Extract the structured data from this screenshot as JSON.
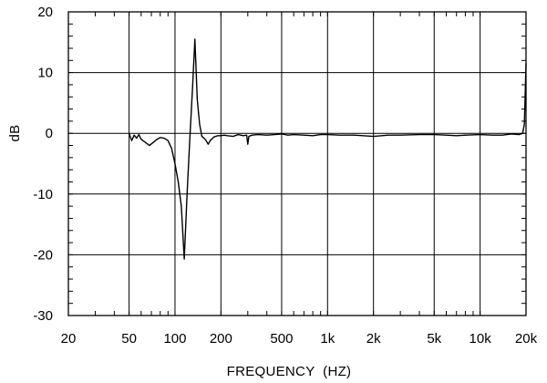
{
  "chart_data": {
    "type": "line",
    "title": "",
    "xlabel": "FREQUENCY  (HZ)",
    "ylabel": "dB",
    "x_scale": "log",
    "xlim": [
      20,
      20000
    ],
    "ylim": [
      -30,
      20
    ],
    "grid": true,
    "legend": "none",
    "x_ticks": [
      {
        "value": 20,
        "label": "20"
      },
      {
        "value": 50,
        "label": "50"
      },
      {
        "value": 100,
        "label": "100"
      },
      {
        "value": 200,
        "label": "200"
      },
      {
        "value": 500,
        "label": "500"
      },
      {
        "value": 1000,
        "label": "1k"
      },
      {
        "value": 2000,
        "label": "2k"
      },
      {
        "value": 5000,
        "label": "5k"
      },
      {
        "value": 10000,
        "label": "10k"
      },
      {
        "value": 20000,
        "label": "20k"
      }
    ],
    "y_ticks": [
      {
        "value": 20,
        "label": "20"
      },
      {
        "value": 10,
        "label": "10"
      },
      {
        "value": 0,
        "label": "0"
      },
      {
        "value": -10,
        "label": "-10"
      },
      {
        "value": -20,
        "label": "-20"
      },
      {
        "value": -30,
        "label": "-30"
      }
    ],
    "series": [
      {
        "color": "#000000",
        "x": [
          50,
          52,
          54,
          56,
          58,
          60,
          64,
          68,
          72,
          76,
          80,
          85,
          90,
          95,
          100,
          105,
          110,
          115,
          120,
          125,
          130,
          135,
          140,
          145,
          150,
          155,
          160,
          165,
          170,
          180,
          190,
          200,
          210,
          220,
          240,
          260,
          280,
          295,
          300,
          305,
          320,
          350,
          400,
          450,
          500,
          550,
          600,
          700,
          800,
          900,
          1000,
          1200,
          1500,
          2000,
          2500,
          3000,
          4000,
          5000,
          6000,
          7000,
          8000,
          10000,
          12000,
          14000,
          16000,
          18000,
          19000,
          19500,
          20000
        ],
        "y": [
          0,
          -1.2,
          -0.3,
          -0.8,
          -0.2,
          -1.0,
          -1.5,
          -2.0,
          -1.5,
          -1.0,
          -0.7,
          -0.8,
          -1.2,
          -2.5,
          -5,
          -8,
          -12,
          -20.7,
          -10,
          -1,
          7,
          15.5,
          5.5,
          1.5,
          -0.5,
          -0.8,
          -1.2,
          -1.8,
          -1.2,
          -0.6,
          -0.4,
          -0.4,
          -0.3,
          -0.4,
          -0.5,
          -0.2,
          -0.4,
          -0.3,
          -1.8,
          -0.5,
          -0.3,
          -0.2,
          -0.3,
          -0.2,
          -0.1,
          -0.3,
          -0.2,
          -0.3,
          -0.4,
          -0.2,
          -0.2,
          -0.3,
          -0.3,
          -0.5,
          -0.3,
          -0.3,
          -0.2,
          -0.2,
          -0.3,
          -0.4,
          -0.3,
          -0.2,
          -0.3,
          -0.3,
          -0.1,
          -0.2,
          0.0,
          1.5,
          11.5
        ]
      }
    ]
  }
}
